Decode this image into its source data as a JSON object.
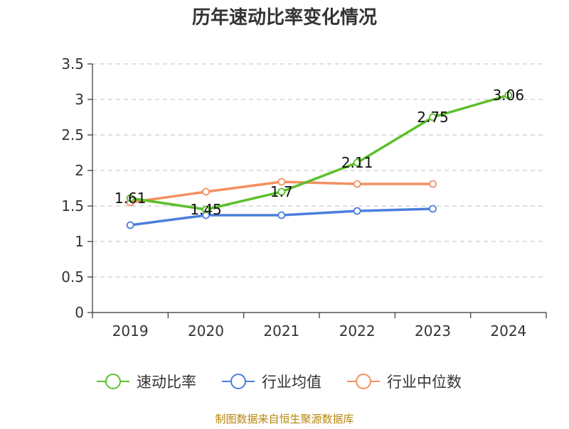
{
  "chart_data": {
    "type": "line",
    "title": "历年速动比率变化情况",
    "categories": [
      "2019",
      "2020",
      "2021",
      "2022",
      "2023",
      "2024"
    ],
    "ylim": [
      0,
      3.5
    ],
    "yticks": [
      "0",
      "0.5",
      "1",
      "1.5",
      "2",
      "2.5",
      "3",
      "3.5"
    ],
    "grid": true,
    "legend_position": "bottom",
    "series": [
      {
        "name": "速动比率",
        "color": "#5cbf2a",
        "values": [
          1.61,
          1.45,
          1.7,
          2.11,
          2.75,
          3.06
        ],
        "labels": [
          "1.61",
          "1.45",
          "1.7",
          "2.11",
          "2.75",
          "3.06"
        ],
        "show_labels": true
      },
      {
        "name": "行业均值",
        "color": "#4a7fdb",
        "values": [
          1.23,
          1.37,
          1.37,
          1.43,
          1.46,
          null
        ],
        "show_labels": false
      },
      {
        "name": "行业中位数",
        "color": "#f39060",
        "values": [
          1.55,
          1.7,
          1.84,
          1.81,
          1.81,
          null
        ],
        "show_labels": false
      }
    ],
    "source": "制图数据来自恒生聚源数据库"
  }
}
